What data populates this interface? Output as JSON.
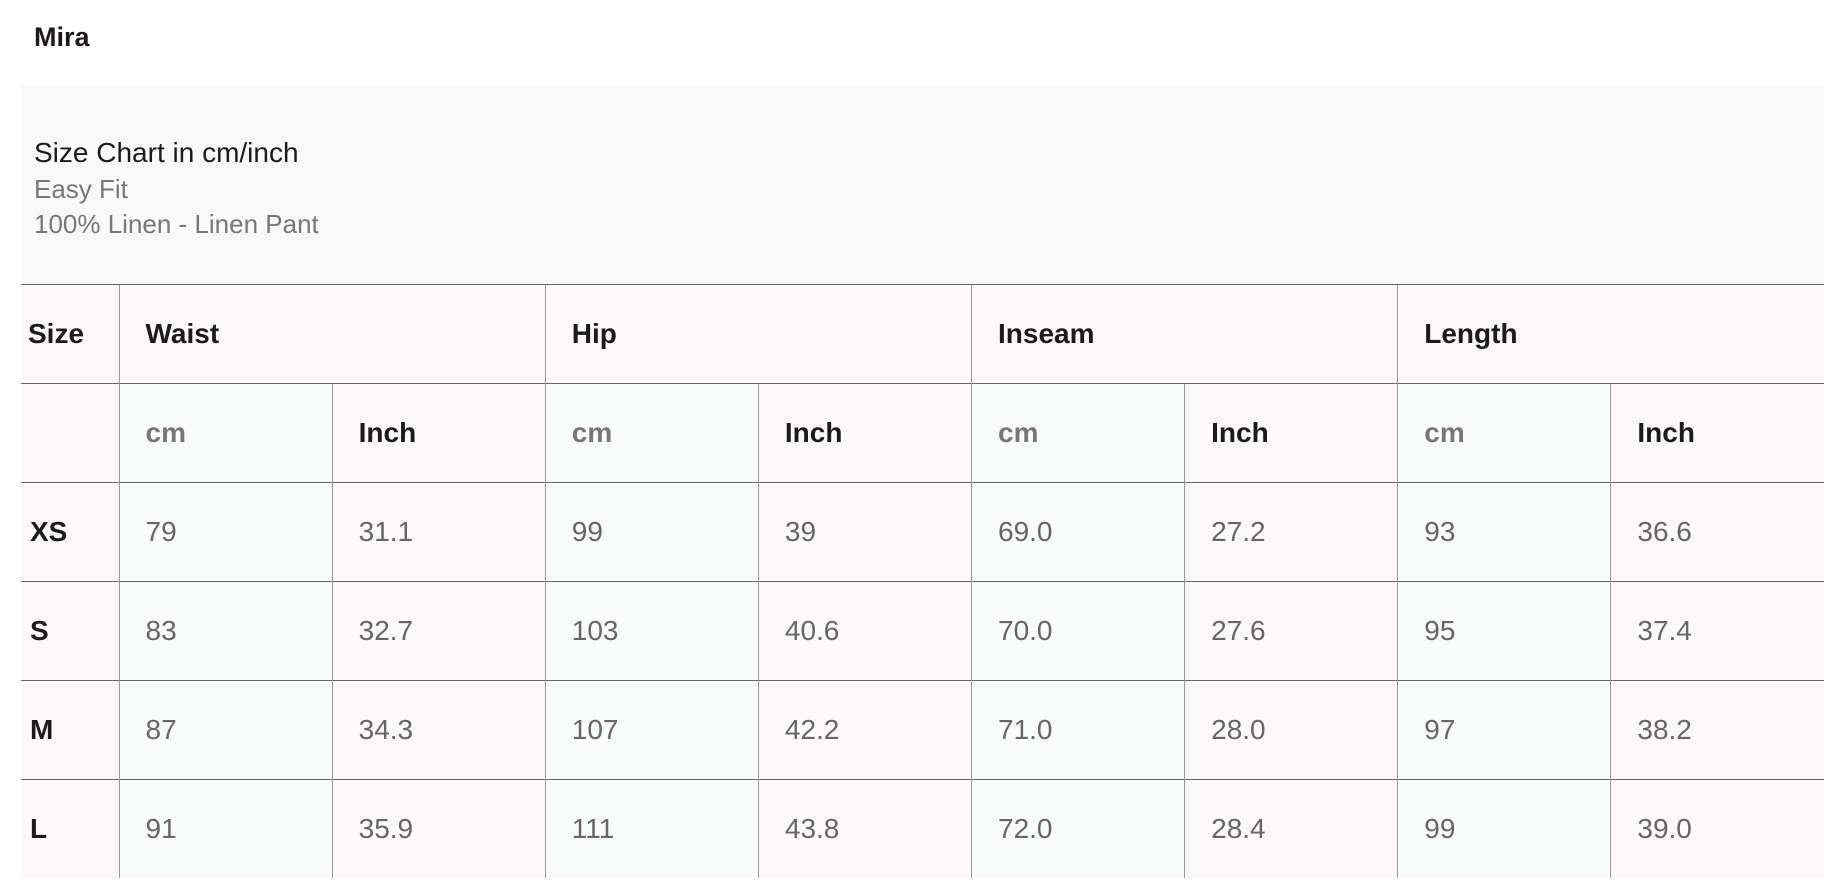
{
  "product_name": "Mira",
  "info": {
    "heading": "Size Chart in cm/inch",
    "fit": "Easy Fit",
    "material": "100% Linen - Linen Pant"
  },
  "table": {
    "size_header": "Size",
    "groups": [
      "Waist",
      "Hip",
      "Inseam",
      "Length"
    ],
    "units": [
      "cm",
      "Inch"
    ],
    "rows": [
      {
        "size": "XS",
        "values": [
          "79",
          "31.1",
          "99",
          "39",
          "69.0",
          "27.2",
          "93",
          "36.6"
        ]
      },
      {
        "size": "S",
        "values": [
          "83",
          "32.7",
          "103",
          "40.6",
          "70.0",
          "27.6",
          "95",
          "37.4"
        ]
      },
      {
        "size": "M",
        "values": [
          "87",
          "34.3",
          "107",
          "42.2",
          "71.0",
          "28.0",
          "97",
          "38.2"
        ]
      },
      {
        "size": "L",
        "values": [
          "91",
          "35.9",
          "111",
          "43.8",
          "72.0",
          "28.4",
          "99",
          "39.0"
        ]
      }
    ]
  },
  "colors": {
    "pink_cell": "#fdf8f9",
    "gray_cell": "#f9fafa",
    "text": "#1e1a1c",
    "muted": "#777777"
  }
}
